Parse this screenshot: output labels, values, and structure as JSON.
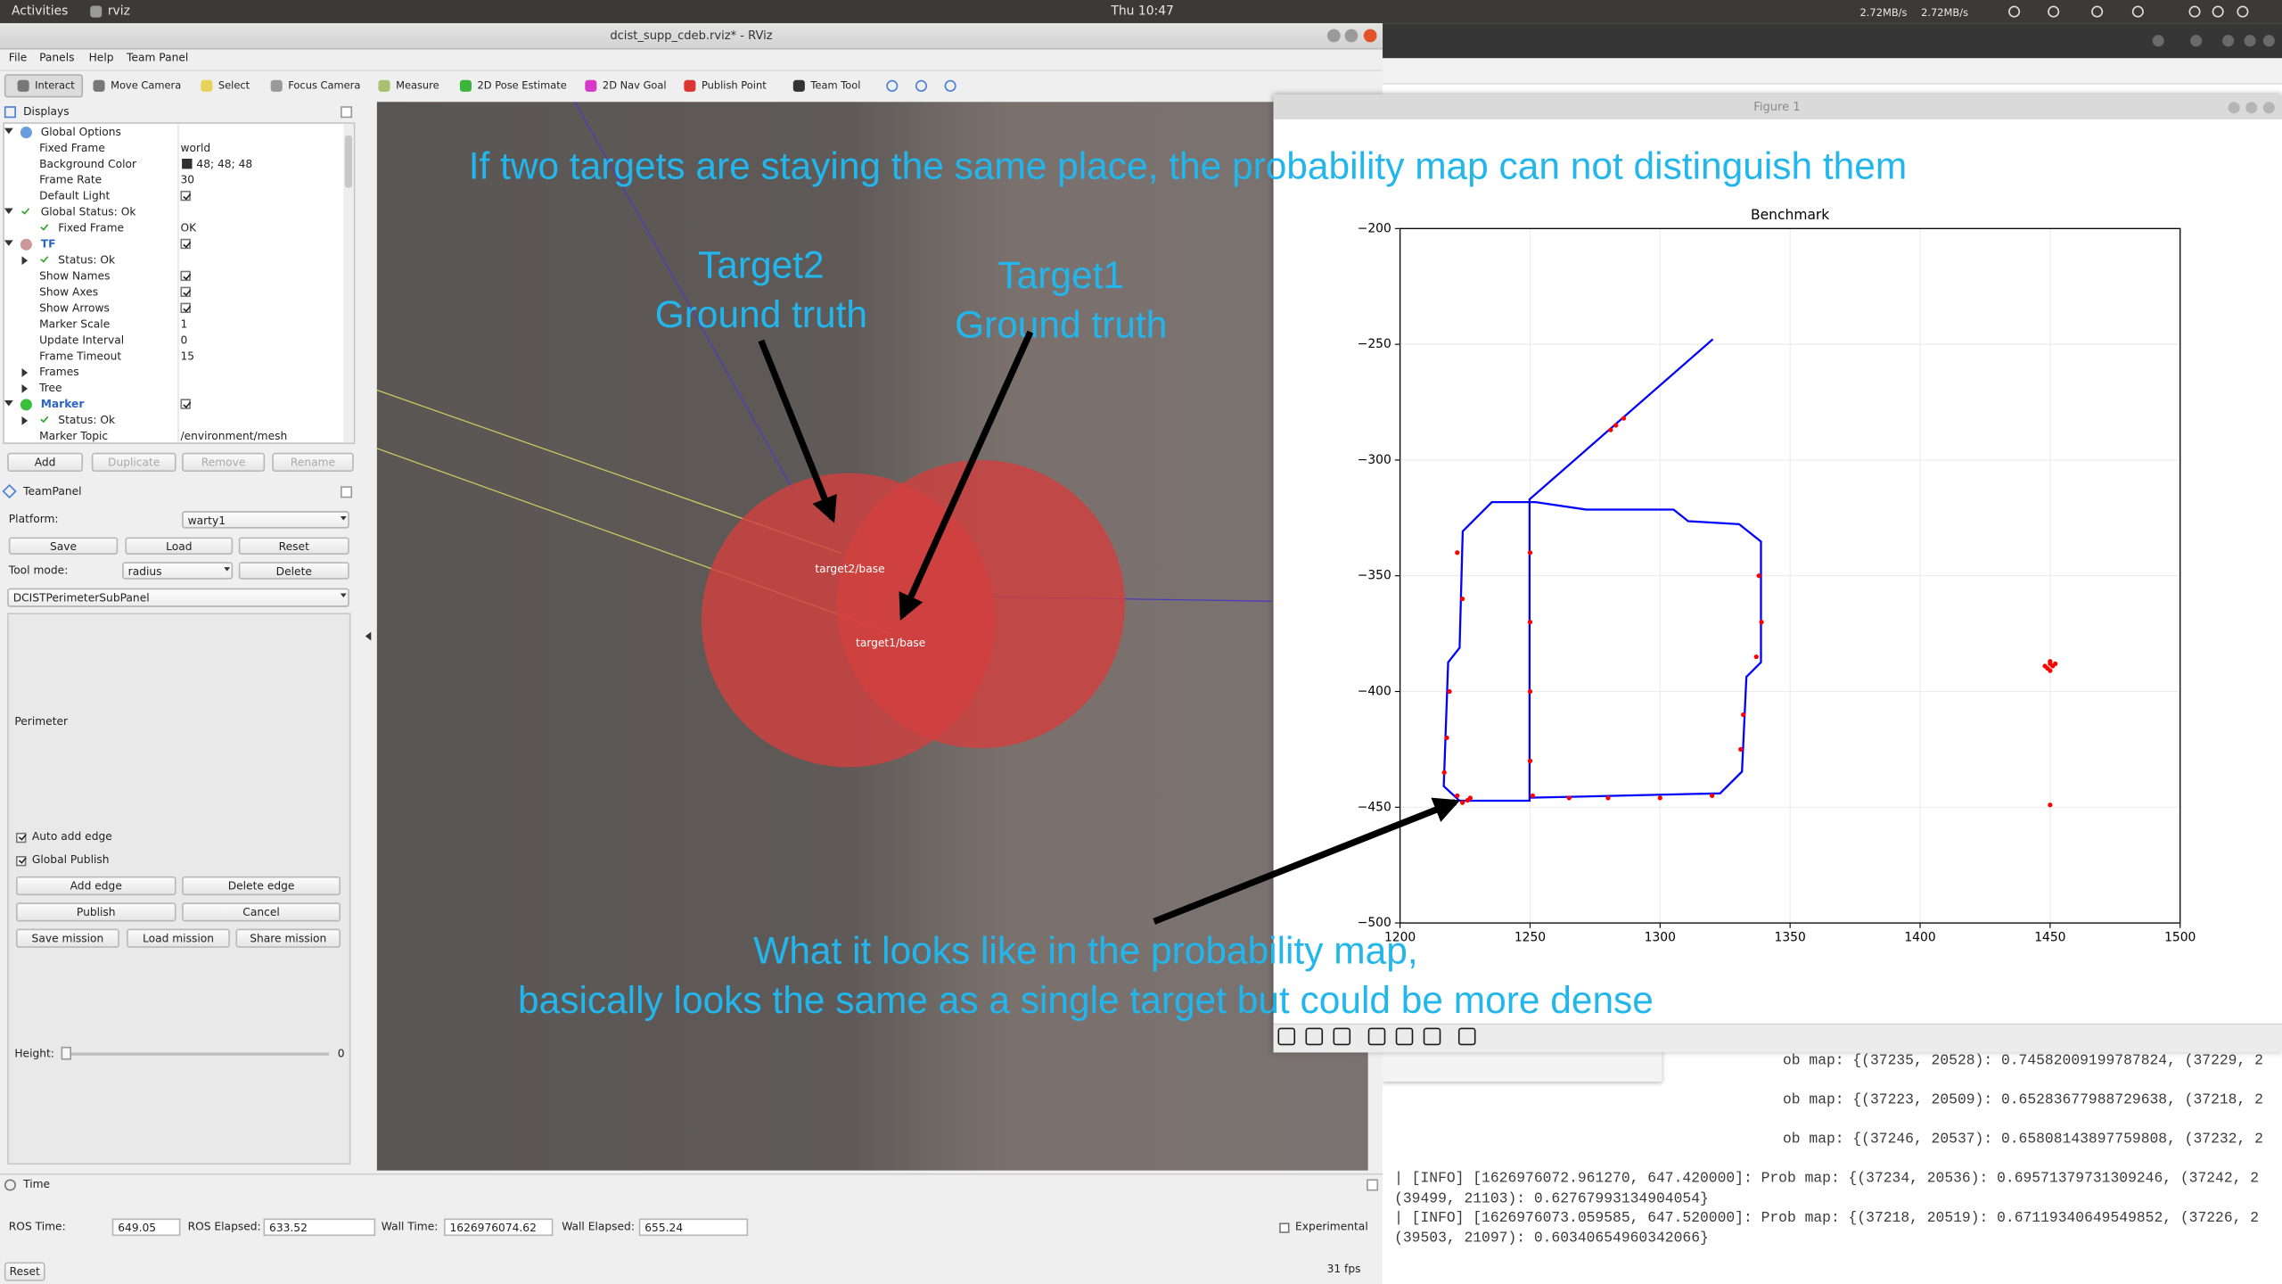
{
  "topbar": {
    "activities": "Activities",
    "app": "rviz",
    "clock": "Thu 10:47",
    "net": [
      "2.72MB/s",
      "2.72MB/s"
    ]
  },
  "rviz": {
    "title": "dcist_supp_cdeb.rviz* - RViz",
    "menu": [
      "File",
      "Panels",
      "Help",
      "Team Panel"
    ],
    "toolbar": [
      "Interact",
      "Move Camera",
      "Select",
      "Focus Camera",
      "Measure",
      "2D Pose Estimate",
      "2D Nav Goal",
      "Publish Point",
      "Team Tool"
    ],
    "displays": {
      "title": "Displays",
      "rows": [
        {
          "label": "Global Options"
        },
        {
          "label": "Fixed Frame",
          "value": "world"
        },
        {
          "label": "Background Color",
          "value": "48; 48; 48"
        },
        {
          "label": "Frame Rate",
          "value": "30"
        },
        {
          "label": "Default Light",
          "checked": true
        },
        {
          "label": "Global Status: Ok"
        },
        {
          "label": "Fixed Frame",
          "value": "OK"
        },
        {
          "label": "TF",
          "checked": true
        },
        {
          "label": "Status: Ok"
        },
        {
          "label": "Show Names",
          "checked": true
        },
        {
          "label": "Show Axes",
          "checked": true
        },
        {
          "label": "Show Arrows",
          "checked": true
        },
        {
          "label": "Marker Scale",
          "value": "1"
        },
        {
          "label": "Update Interval",
          "value": "0"
        },
        {
          "label": "Frame Timeout",
          "value": "15"
        },
        {
          "label": "Frames"
        },
        {
          "label": "Tree"
        },
        {
          "label": "Marker",
          "checked": true
        },
        {
          "label": "Status: Ok"
        },
        {
          "label": "Marker Topic",
          "value": "/environment/mesh"
        }
      ],
      "buttons": [
        "Add",
        "Duplicate",
        "Remove",
        "Rename"
      ]
    },
    "team_panel": {
      "title": "TeamPanel",
      "platform_label": "Platform:",
      "platform": "warty1",
      "file_buttons": [
        "Save",
        "Load",
        "Reset"
      ],
      "tool_mode_label": "Tool mode:",
      "tool_mode": "radius",
      "delete": "Delete",
      "subpanel": "DCISTPerimeterSubPanel",
      "perimeter": "Perimeter",
      "options": [
        {
          "label": "Auto add edge",
          "checked": true
        },
        {
          "label": "Global Publish",
          "checked": true
        }
      ],
      "buttons": [
        "Add edge",
        "Delete edge",
        "Publish",
        "Cancel",
        "Save mission",
        "Load mission",
        "Share mission"
      ],
      "height_label": "Height:",
      "height": "0"
    },
    "time": {
      "title": "Time",
      "fields": [
        {
          "label": "ROS Time:",
          "value": "649.05"
        },
        {
          "label": "ROS Elapsed:",
          "value": "633.52"
        },
        {
          "label": "Wall Time:",
          "value": "1626976074.62"
        },
        {
          "label": "Wall Elapsed:",
          "value": "655.24"
        }
      ],
      "experimental": "Experimental",
      "reset": "Reset",
      "fps": "31 fps"
    }
  },
  "viewport": {
    "frames": [
      "target2/base",
      "target1/base"
    ]
  },
  "annotations": {
    "headline": "If two targets are staying the same place, the probability map can not distinguish them",
    "target2": [
      "Target2",
      "Ground truth"
    ],
    "target1": [
      "Target1",
      "Ground truth"
    ],
    "footnote": [
      "What it looks like in the probability map,",
      "basically looks the same as a single target but could be more dense"
    ]
  },
  "figure": {
    "title": "Figure 1"
  },
  "chart_data": {
    "type": "line",
    "title": "Benchmark",
    "xlim": [
      1200,
      1500
    ],
    "ylim": [
      -500,
      -200
    ],
    "xticks": [
      1200,
      1250,
      1300,
      1350,
      1400,
      1450,
      1500
    ],
    "yticks": [
      {
        "value": -200,
        "label": "−200"
      },
      {
        "value": -250,
        "label": "−250"
      },
      {
        "value": -300,
        "label": "−300"
      },
      {
        "value": -350,
        "label": "−350"
      },
      {
        "value": -400,
        "label": "−400"
      },
      {
        "value": -450,
        "label": "−450"
      },
      {
        "value": -500,
        "label": "−500"
      }
    ],
    "grid": true,
    "series": [
      {
        "style": "line",
        "color": "#0000ff",
        "x": [
          1320.3,
          1249.8,
          1249.8,
          1222.9,
          1216.8,
          1218.5,
          1222.9,
          1224.1,
          1235.3,
          1252.1,
          1271.6,
          1305.2,
          1310.8,
          1330.4,
          1338.8,
          1338.8,
          1333.2,
          1331.5,
          1323.1,
          1249.8
        ],
        "y": [
          -247.8,
          -317,
          -447.2,
          -447.2,
          -440.9,
          -387.4,
          -381.1,
          -330.8,
          -318.2,
          -318.2,
          -321.4,
          -321.4,
          -326.4,
          -327.7,
          -335.2,
          -387.4,
          -393.7,
          -434.6,
          -444,
          -445.9
        ]
      },
      {
        "style": "points",
        "color": "#ff0000",
        "x": [
          1226,
          1224,
          1227,
          1222,
          1250,
          1250,
          1250,
          1250,
          1251,
          1222,
          1224,
          1219,
          1218,
          1217,
          1265,
          1280,
          1300,
          1320,
          1338,
          1339,
          1337,
          1332,
          1331,
          1283,
          1281,
          1286,
          1450,
          1449,
          1451,
          1450,
          1448,
          1452,
          1450,
          1450
        ],
        "y": [
          -447,
          -448,
          -446,
          -445,
          -340,
          -370,
          -400,
          -430,
          -445,
          -340,
          -360,
          -400,
          -420,
          -435,
          -446,
          -446,
          -446,
          -445,
          -350,
          -370,
          -385,
          -410,
          -425,
          -285,
          -287,
          -282,
          -388,
          -390,
          -389,
          -391,
          -389,
          -388,
          -387,
          -449
        ]
      }
    ]
  },
  "terminal": {
    "lines": [
      "ob map: {(37235, 20528): 0.74582009199787824, (37229, 2",
      "ob map: {(37223, 20509): 0.65283677988729638, (37218, 2",
      "ob map: {(37246, 20537): 0.65808143897759808, (37232, 2",
      "| [INFO] [1626976072.961270, 647.420000]: Prob map: {(37234, 20536): 0.69571379731309246, (37242, 2",
      "(39499, 21103): 0.62767993134904054}",
      "| [INFO] [1626976073.059585, 647.520000]: Prob map: {(37218, 20519): 0.67119340649549852, (37226, 2",
      "(39503, 21097): 0.60340654960342066}"
    ]
  }
}
